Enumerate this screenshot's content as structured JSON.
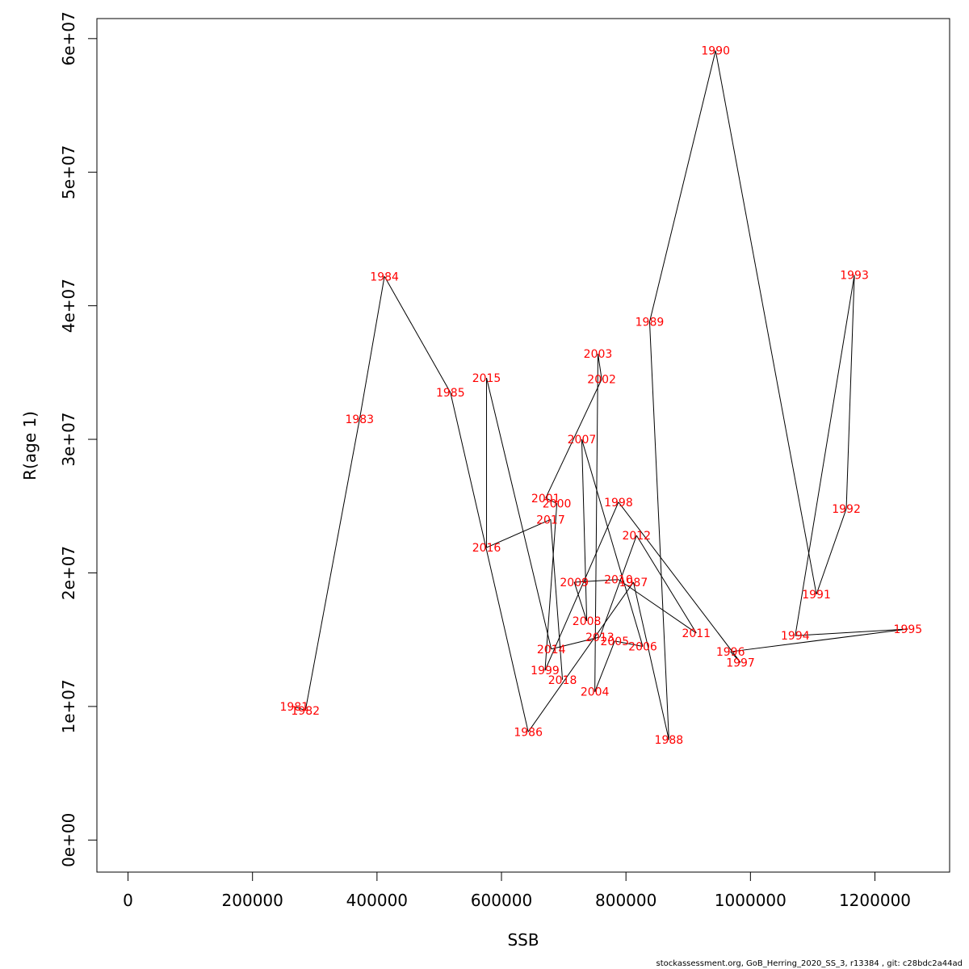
{
  "chart_data": {
    "type": "scatter",
    "xlabel": "SSB",
    "ylabel": "R(age 1)",
    "xlim": [
      -50000,
      1320000
    ],
    "ylim": [
      -2400000,
      61500000
    ],
    "x_ticks": [
      0,
      200000,
      400000,
      600000,
      800000,
      1000000,
      1200000
    ],
    "x_tick_labels": [
      "0",
      "200000",
      "400000",
      "600000",
      "800000",
      "1000000",
      "1200000"
    ],
    "y_ticks": [
      0,
      10000000,
      20000000,
      30000000,
      40000000,
      50000000,
      60000000
    ],
    "y_tick_labels": [
      "0e+00",
      "1e+07",
      "2e+07",
      "3e+07",
      "4e+07",
      "5e+07",
      "6e+07"
    ],
    "grid": false,
    "line_color": "#000000",
    "label_color": "#ff0000",
    "points": [
      {
        "year": "1981",
        "x": 267000,
        "y": 10000000
      },
      {
        "year": "1982",
        "x": 285000,
        "y": 9700000
      },
      {
        "year": "1983",
        "x": 372000,
        "y": 31500000
      },
      {
        "year": "1984",
        "x": 412000,
        "y": 42200000
      },
      {
        "year": "1985",
        "x": 518000,
        "y": 33500000
      },
      {
        "year": "1986",
        "x": 643000,
        "y": 8100000
      },
      {
        "year": "1987",
        "x": 812000,
        "y": 19300000
      },
      {
        "year": "1988",
        "x": 869000,
        "y": 7500000
      },
      {
        "year": "1989",
        "x": 838000,
        "y": 38800000
      },
      {
        "year": "1990",
        "x": 944000,
        "y": 59100000
      },
      {
        "year": "1991",
        "x": 1106000,
        "y": 18400000
      },
      {
        "year": "1992",
        "x": 1154000,
        "y": 24800000
      },
      {
        "year": "1993",
        "x": 1167000,
        "y": 42300000
      },
      {
        "year": "1994",
        "x": 1072000,
        "y": 15300000
      },
      {
        "year": "1995",
        "x": 1253000,
        "y": 15800000
      },
      {
        "year": "1996",
        "x": 968000,
        "y": 14100000
      },
      {
        "year": "1997",
        "x": 984000,
        "y": 13300000
      },
      {
        "year": "1998",
        "x": 788000,
        "y": 25300000
      },
      {
        "year": "1999",
        "x": 670000,
        "y": 12700000
      },
      {
        "year": "2000",
        "x": 689000,
        "y": 25200000
      },
      {
        "year": "2001",
        "x": 671000,
        "y": 25600000
      },
      {
        "year": "2002",
        "x": 761000,
        "y": 34500000
      },
      {
        "year": "2003",
        "x": 755000,
        "y": 36400000
      },
      {
        "year": "2004",
        "x": 750000,
        "y": 11100000
      },
      {
        "year": "2005",
        "x": 782000,
        "y": 14900000
      },
      {
        "year": "2006",
        "x": 827000,
        "y": 14500000
      },
      {
        "year": "2007",
        "x": 729000,
        "y": 30000000
      },
      {
        "year": "2008",
        "x": 737000,
        "y": 16400000
      },
      {
        "year": "2009",
        "x": 717000,
        "y": 19300000
      },
      {
        "year": "2010",
        "x": 788000,
        "y": 19500000
      },
      {
        "year": "2011",
        "x": 913000,
        "y": 15500000
      },
      {
        "year": "2012",
        "x": 817000,
        "y": 22800000
      },
      {
        "year": "2013",
        "x": 758000,
        "y": 15200000
      },
      {
        "year": "2014",
        "x": 680000,
        "y": 14300000
      },
      {
        "year": "2015",
        "x": 576000,
        "y": 34600000
      },
      {
        "year": "2016",
        "x": 576000,
        "y": 21900000
      },
      {
        "year": "2017",
        "x": 679000,
        "y": 24000000
      },
      {
        "year": "2018",
        "x": 698000,
        "y": 12000000
      }
    ]
  },
  "footer": "stockassessment.org, GoB_Herring_2020_SS_3, r13384 , git: c28bdc2a44ad"
}
